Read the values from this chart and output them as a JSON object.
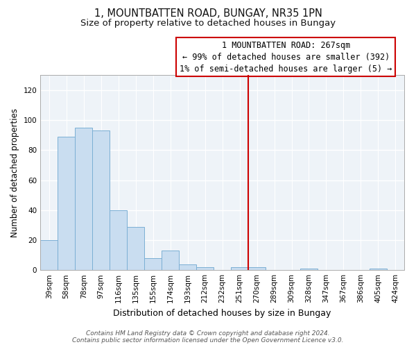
{
  "title": "1, MOUNTBATTEN ROAD, BUNGAY, NR35 1PN",
  "subtitle": "Size of property relative to detached houses in Bungay",
  "xlabel": "Distribution of detached houses by size in Bungay",
  "ylabel": "Number of detached properties",
  "bar_labels": [
    "39sqm",
    "58sqm",
    "78sqm",
    "97sqm",
    "116sqm",
    "135sqm",
    "155sqm",
    "174sqm",
    "193sqm",
    "212sqm",
    "232sqm",
    "251sqm",
    "270sqm",
    "289sqm",
    "309sqm",
    "328sqm",
    "347sqm",
    "367sqm",
    "386sqm",
    "405sqm",
    "424sqm"
  ],
  "bar_values": [
    20,
    89,
    95,
    93,
    40,
    29,
    8,
    13,
    4,
    2,
    0,
    2,
    2,
    0,
    0,
    1,
    0,
    0,
    0,
    1,
    0
  ],
  "bar_color": "#c9ddf0",
  "bar_edge_color": "#7bafd4",
  "vline_index": 12,
  "vline_color": "#cc0000",
  "annotation_line0": "1 MOUNTBATTEN ROAD: 267sqm",
  "annotation_line1": "← 99% of detached houses are smaller (392)",
  "annotation_line2": "1% of semi-detached houses are larger (5) →",
  "ylim": [
    0,
    130
  ],
  "yticks": [
    0,
    20,
    40,
    60,
    80,
    100,
    120
  ],
  "footer_line1": "Contains HM Land Registry data © Crown copyright and database right 2024.",
  "footer_line2": "Contains public sector information licensed under the Open Government Licence v3.0.",
  "title_fontsize": 10.5,
  "subtitle_fontsize": 9.5,
  "xlabel_fontsize": 9,
  "ylabel_fontsize": 8.5,
  "tick_fontsize": 7.5,
  "footer_fontsize": 6.5,
  "annotation_fontsize": 8.5,
  "bg_color": "#eef3f8"
}
